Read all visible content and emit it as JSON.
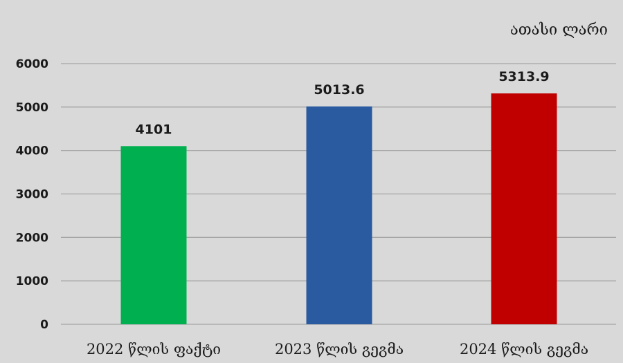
{
  "chart_data": {
    "type": "bar",
    "unit_label": "ათასი ლარი",
    "categories": [
      "2022 წლის ფაქტი",
      "2023 წლის გეგმა",
      "2024 წლის გეგმა"
    ],
    "values": [
      4101,
      5013.6,
      5313.9
    ],
    "data_labels": [
      "4101",
      "5013.6",
      "5313.9"
    ],
    "bar_colors": [
      "#00b050",
      "#2a5aa0",
      "#c00000"
    ],
    "ylim": [
      0,
      6000
    ],
    "yticks": [
      0,
      1000,
      2000,
      3000,
      4000,
      5000,
      6000
    ],
    "grid": true,
    "legend": false,
    "background": "#d9d9d9"
  }
}
